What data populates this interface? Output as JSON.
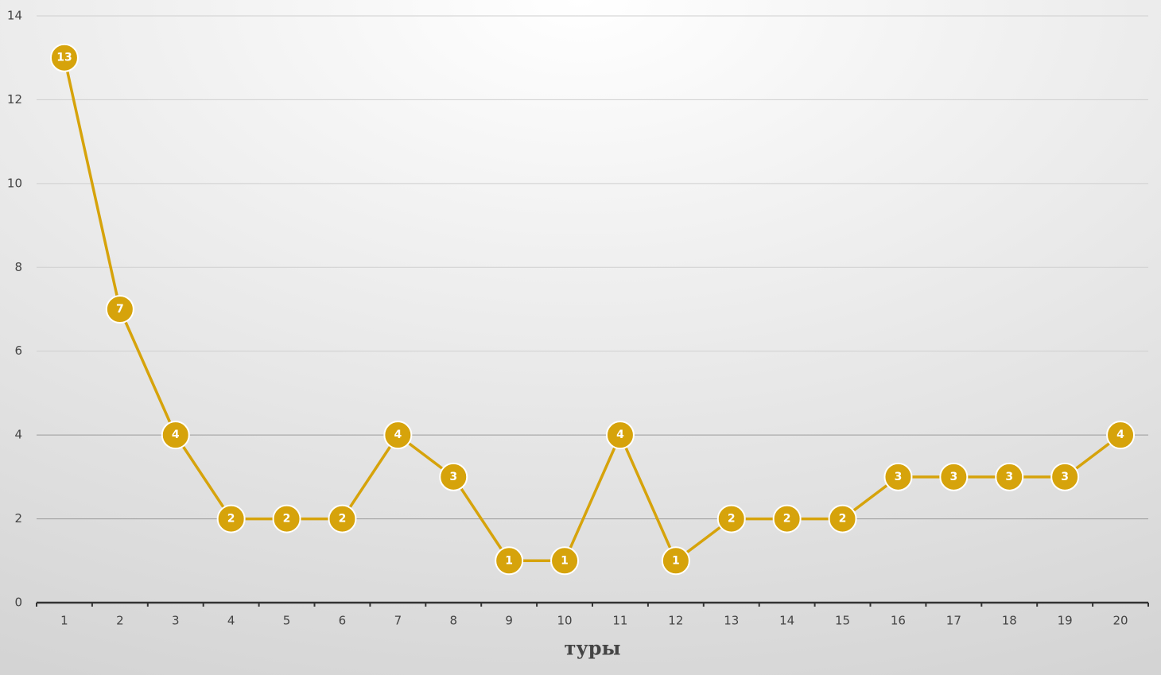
{
  "chart_data": {
    "type": "line",
    "x_label": "туры",
    "categories": [
      "1",
      "2",
      "3",
      "4",
      "5",
      "6",
      "7",
      "8",
      "9",
      "10",
      "11",
      "12",
      "13",
      "14",
      "15",
      "16",
      "17",
      "18",
      "19",
      "20"
    ],
    "values": [
      13,
      7,
      4,
      2,
      2,
      2,
      4,
      3,
      1,
      1,
      4,
      1,
      2,
      2,
      2,
      3,
      3,
      3,
      3,
      4
    ],
    "color": "#d6a30b",
    "ylim": [
      0,
      14
    ],
    "yticks": [
      0,
      2,
      4,
      6,
      8,
      10,
      12,
      14
    ],
    "grid": true
  }
}
